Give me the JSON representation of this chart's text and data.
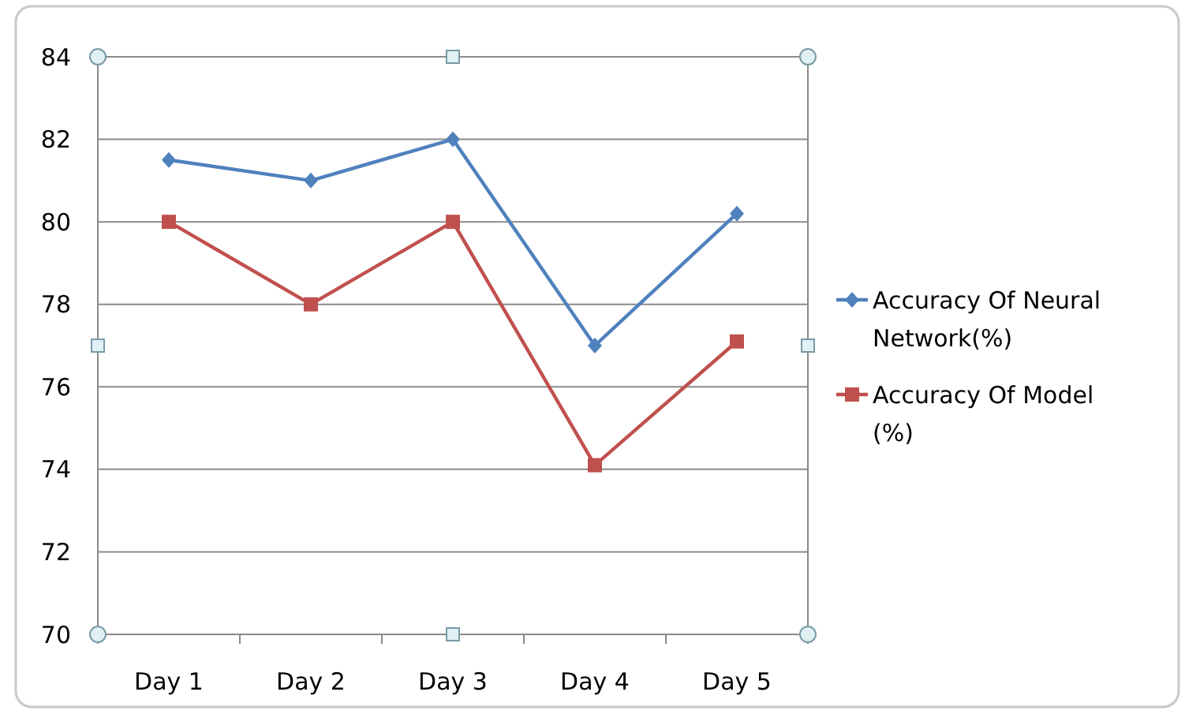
{
  "chart_data": {
    "type": "line",
    "categories": [
      "Day 1",
      "Day 2",
      "Day 3",
      "Day 4",
      "Day 5"
    ],
    "series": [
      {
        "name": "Accuracy Of Neural Network(%)",
        "color": "#4f81bd",
        "marker": "diamond",
        "values": [
          81.5,
          81.0,
          82.0,
          77.0,
          80.2
        ]
      },
      {
        "name": "Accuracy Of Model (%)",
        "color": "#c0504d",
        "marker": "square",
        "values": [
          80.0,
          78.0,
          80.0,
          74.1,
          77.1
        ]
      }
    ],
    "ylim": [
      70,
      84
    ],
    "yticks": [
      70,
      72,
      74,
      76,
      78,
      80,
      82,
      84
    ],
    "grid": "y",
    "legend": "right",
    "line_style": "solid"
  }
}
